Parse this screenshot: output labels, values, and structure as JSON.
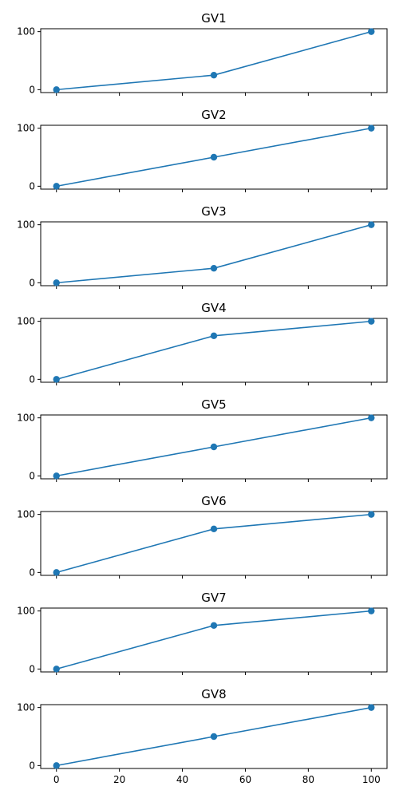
{
  "chart_data": [
    {
      "type": "line",
      "title": "GV1",
      "x": [
        0,
        50,
        100
      ],
      "y": [
        0,
        25,
        100
      ],
      "xlim": [
        -5,
        105
      ],
      "ylim": [
        -5,
        105
      ],
      "xticks": [
        0,
        20,
        40,
        60,
        80,
        100
      ],
      "yticks": [
        0,
        100
      ],
      "color": "#1f77b4",
      "grid": false
    },
    {
      "type": "line",
      "title": "GV2",
      "x": [
        0,
        50,
        100
      ],
      "y": [
        0,
        50,
        100
      ],
      "xlim": [
        -5,
        105
      ],
      "ylim": [
        -5,
        105
      ],
      "xticks": [
        0,
        20,
        40,
        60,
        80,
        100
      ],
      "yticks": [
        0,
        100
      ],
      "color": "#1f77b4",
      "grid": false
    },
    {
      "type": "line",
      "title": "GV3",
      "x": [
        0,
        50,
        100
      ],
      "y": [
        0,
        25,
        100
      ],
      "xlim": [
        -5,
        105
      ],
      "ylim": [
        -5,
        105
      ],
      "xticks": [
        0,
        20,
        40,
        60,
        80,
        100
      ],
      "yticks": [
        0,
        100
      ],
      "color": "#1f77b4",
      "grid": false
    },
    {
      "type": "line",
      "title": "GV4",
      "x": [
        0,
        50,
        100
      ],
      "y": [
        0,
        75,
        100
      ],
      "xlim": [
        -5,
        105
      ],
      "ylim": [
        -5,
        105
      ],
      "xticks": [
        0,
        20,
        40,
        60,
        80,
        100
      ],
      "yticks": [
        0,
        100
      ],
      "color": "#1f77b4",
      "grid": false
    },
    {
      "type": "line",
      "title": "GV5",
      "x": [
        0,
        50,
        100
      ],
      "y": [
        0,
        50,
        100
      ],
      "xlim": [
        -5,
        105
      ],
      "ylim": [
        -5,
        105
      ],
      "xticks": [
        0,
        20,
        40,
        60,
        80,
        100
      ],
      "yticks": [
        0,
        100
      ],
      "color": "#1f77b4",
      "grid": false
    },
    {
      "type": "line",
      "title": "GV6",
      "x": [
        0,
        50,
        100
      ],
      "y": [
        0,
        75,
        100
      ],
      "xlim": [
        -5,
        105
      ],
      "ylim": [
        -5,
        105
      ],
      "xticks": [
        0,
        20,
        40,
        60,
        80,
        100
      ],
      "yticks": [
        0,
        100
      ],
      "color": "#1f77b4",
      "grid": false
    },
    {
      "type": "line",
      "title": "GV7",
      "x": [
        0,
        50,
        100
      ],
      "y": [
        0,
        75,
        100
      ],
      "xlim": [
        -5,
        105
      ],
      "ylim": [
        -5,
        105
      ],
      "xticks": [
        0,
        20,
        40,
        60,
        80,
        100
      ],
      "yticks": [
        0,
        100
      ],
      "color": "#1f77b4",
      "grid": false
    },
    {
      "type": "line",
      "title": "GV8",
      "x": [
        0,
        50,
        100
      ],
      "y": [
        0,
        50,
        100
      ],
      "xlim": [
        -5,
        105
      ],
      "ylim": [
        -5,
        105
      ],
      "xticks": [
        0,
        20,
        40,
        60,
        80,
        100
      ],
      "yticks": [
        0,
        100
      ],
      "color": "#1f77b4",
      "grid": false
    }
  ]
}
